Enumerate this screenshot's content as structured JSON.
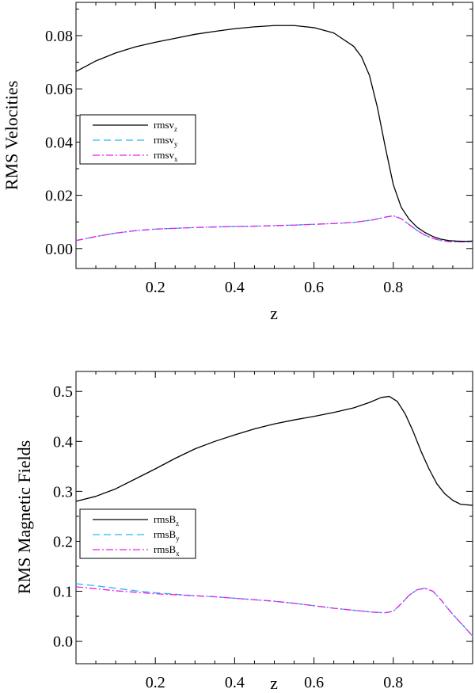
{
  "chart_data": [
    {
      "type": "line",
      "ylabel": "RMS Velocities",
      "xlabel": "z",
      "xlim": [
        0.0,
        1.0
      ],
      "ylim": [
        -0.0075,
        0.0925
      ],
      "xticks": [
        0.2,
        0.4,
        0.6,
        0.8
      ],
      "xtick_labels": [
        "0.2",
        "0.4",
        "0.6",
        "0.8"
      ],
      "yticks": [
        0.0,
        0.02,
        0.04,
        0.06,
        0.08
      ],
      "ytick_labels": [
        "0.00",
        "0.02",
        "0.04",
        "0.06",
        "0.08"
      ],
      "legend_position": "left-middle",
      "series": [
        {
          "name": "rmsv",
          "subscript": "z",
          "color": "#000000",
          "dash": "solid",
          "x": [
            0.0,
            0.05,
            0.1,
            0.15,
            0.2,
            0.25,
            0.3,
            0.35,
            0.4,
            0.45,
            0.5,
            0.55,
            0.6,
            0.65,
            0.7,
            0.72,
            0.74,
            0.76,
            0.78,
            0.8,
            0.82,
            0.84,
            0.86,
            0.88,
            0.9,
            0.92,
            0.94,
            0.96,
            0.98,
            1.0
          ],
          "y": [
            0.0665,
            0.0705,
            0.0735,
            0.0758,
            0.0775,
            0.079,
            0.0805,
            0.0816,
            0.0826,
            0.0833,
            0.0838,
            0.0838,
            0.083,
            0.081,
            0.076,
            0.072,
            0.065,
            0.053,
            0.038,
            0.024,
            0.0155,
            0.011,
            0.008,
            0.006,
            0.0045,
            0.0035,
            0.003,
            0.0028,
            0.0027,
            0.0028
          ]
        },
        {
          "name": "rmsv",
          "subscript": "y",
          "color": "#29b6f6",
          "dash": "dashed",
          "x": [
            0.0,
            0.05,
            0.1,
            0.15,
            0.2,
            0.25,
            0.3,
            0.35,
            0.4,
            0.45,
            0.5,
            0.55,
            0.6,
            0.65,
            0.7,
            0.75,
            0.78,
            0.8,
            0.82,
            0.84,
            0.86,
            0.88,
            0.9,
            0.92,
            0.94,
            0.96,
            0.98,
            1.0
          ],
          "y": [
            0.003,
            0.0045,
            0.0058,
            0.0067,
            0.0073,
            0.0076,
            0.0079,
            0.0081,
            0.0083,
            0.0084,
            0.0086,
            0.0088,
            0.0091,
            0.0094,
            0.0098,
            0.0108,
            0.0118,
            0.0123,
            0.0112,
            0.009,
            0.0068,
            0.005,
            0.0038,
            0.003,
            0.0026,
            0.0025,
            0.0025,
            0.0026
          ]
        },
        {
          "name": "rmsv",
          "subscript": "x",
          "color": "#e61ee6",
          "dash": "dashdot",
          "x": [
            0.0,
            0.05,
            0.1,
            0.15,
            0.2,
            0.25,
            0.3,
            0.35,
            0.4,
            0.45,
            0.5,
            0.55,
            0.6,
            0.65,
            0.7,
            0.75,
            0.78,
            0.8,
            0.82,
            0.84,
            0.86,
            0.88,
            0.9,
            0.92,
            0.94,
            0.96,
            0.98,
            1.0
          ],
          "y": [
            0.003,
            0.0045,
            0.0058,
            0.0067,
            0.0073,
            0.0076,
            0.0079,
            0.0081,
            0.0083,
            0.0084,
            0.0086,
            0.0088,
            0.0091,
            0.0094,
            0.0098,
            0.0108,
            0.0118,
            0.0123,
            0.0112,
            0.009,
            0.0068,
            0.005,
            0.0038,
            0.003,
            0.0026,
            0.0025,
            0.0025,
            0.0026
          ]
        }
      ]
    },
    {
      "type": "line",
      "ylabel": "RMS Magnetic Fields",
      "xlabel": "z",
      "xlim": [
        0.0,
        1.0
      ],
      "ylim": [
        -0.045,
        0.54
      ],
      "xticks": [
        0.2,
        0.4,
        0.6,
        0.8
      ],
      "xtick_labels": [
        "0.2",
        "0.4",
        "0.6",
        "0.8"
      ],
      "yticks": [
        0.0,
        0.1,
        0.2,
        0.3,
        0.4,
        0.5
      ],
      "ytick_labels": [
        "0.0",
        "0.1",
        "0.2",
        "0.3",
        "0.4",
        "0.5"
      ],
      "legend_position": "left-middle",
      "series": [
        {
          "name": "rmsB",
          "subscript": "z",
          "color": "#000000",
          "dash": "solid",
          "x": [
            0.0,
            0.05,
            0.1,
            0.15,
            0.2,
            0.25,
            0.3,
            0.35,
            0.4,
            0.45,
            0.5,
            0.55,
            0.6,
            0.65,
            0.7,
            0.74,
            0.77,
            0.79,
            0.81,
            0.83,
            0.85,
            0.87,
            0.89,
            0.91,
            0.93,
            0.95,
            0.97,
            1.0
          ],
          "y": [
            0.28,
            0.29,
            0.305,
            0.325,
            0.345,
            0.366,
            0.385,
            0.4,
            0.413,
            0.425,
            0.435,
            0.443,
            0.45,
            0.458,
            0.467,
            0.478,
            0.488,
            0.49,
            0.48,
            0.455,
            0.42,
            0.38,
            0.345,
            0.315,
            0.295,
            0.282,
            0.274,
            0.272
          ]
        },
        {
          "name": "rmsB",
          "subscript": "y",
          "color": "#29b6f6",
          "dash": "dashed",
          "x": [
            0.0,
            0.05,
            0.1,
            0.15,
            0.2,
            0.25,
            0.3,
            0.35,
            0.4,
            0.45,
            0.5,
            0.55,
            0.6,
            0.65,
            0.7,
            0.75,
            0.78,
            0.8,
            0.82,
            0.84,
            0.86,
            0.88,
            0.9,
            0.92,
            0.94,
            0.96,
            0.98,
            1.0
          ],
          "y": [
            0.115,
            0.111,
            0.106,
            0.101,
            0.097,
            0.094,
            0.091,
            0.089,
            0.086,
            0.083,
            0.08,
            0.076,
            0.071,
            0.066,
            0.062,
            0.058,
            0.057,
            0.06,
            0.075,
            0.092,
            0.103,
            0.106,
            0.1,
            0.083,
            0.063,
            0.045,
            0.028,
            0.01
          ]
        },
        {
          "name": "rmsB",
          "subscript": "x",
          "color": "#e61ee6",
          "dash": "dashdot",
          "x": [
            0.0,
            0.05,
            0.1,
            0.15,
            0.2,
            0.25,
            0.3,
            0.35,
            0.4,
            0.45,
            0.5,
            0.55,
            0.6,
            0.65,
            0.7,
            0.75,
            0.78,
            0.8,
            0.82,
            0.84,
            0.86,
            0.88,
            0.9,
            0.92,
            0.94,
            0.96,
            0.98,
            1.0
          ],
          "y": [
            0.109,
            0.105,
            0.101,
            0.098,
            0.095,
            0.093,
            0.091,
            0.089,
            0.086,
            0.083,
            0.08,
            0.076,
            0.071,
            0.066,
            0.062,
            0.058,
            0.057,
            0.06,
            0.075,
            0.092,
            0.103,
            0.106,
            0.1,
            0.083,
            0.063,
            0.045,
            0.028,
            0.01
          ]
        }
      ]
    }
  ]
}
